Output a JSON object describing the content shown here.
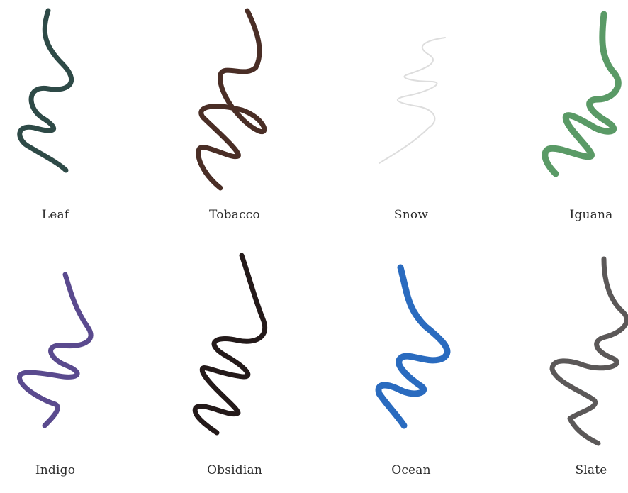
{
  "swatches": [
    {
      "name": "Leaf",
      "color": "#2e4a47"
    },
    {
      "name": "Tobacco",
      "color": "#4a2e26"
    },
    {
      "name": "Snow",
      "color": "#d9d9d9"
    },
    {
      "name": "Iguana",
      "color": "#5a9a66"
    },
    {
      "name": "Indigo",
      "color": "#5a4a8e"
    },
    {
      "name": "Obsidian",
      "color": "#241a1a"
    },
    {
      "name": "Ocean",
      "color": "#2a6bbf"
    },
    {
      "name": "Slate",
      "color": "#5b5858"
    }
  ]
}
